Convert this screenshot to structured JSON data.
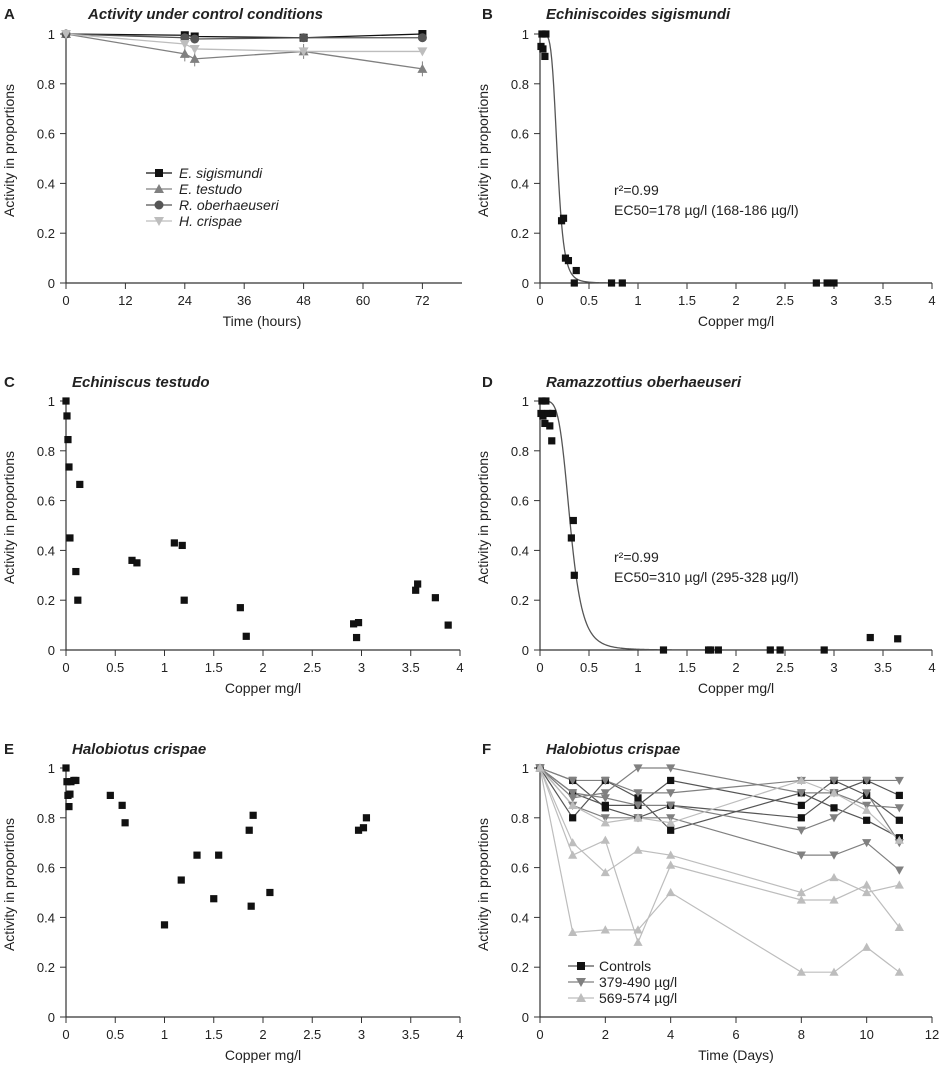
{
  "colors": {
    "black": "#111111",
    "dark": "#555555",
    "mid": "#808080",
    "light": "#bdbdbd",
    "axis": "#333333"
  },
  "chart_data": [
    {
      "id": "A",
      "letter": "A",
      "type": "line",
      "title": "Activity under control conditions",
      "xlabel": "Time (hours)",
      "ylabel": "Activity in proportions",
      "xlim": [
        0,
        80
      ],
      "ylim": [
        0,
        1
      ],
      "xticks": [
        0,
        12,
        24,
        36,
        48,
        60,
        72
      ],
      "yticks": [
        0,
        0.2,
        0.4,
        0.6,
        0.8,
        1
      ],
      "ytick_labels": [
        "0",
        "0.2",
        "0.4",
        "0.6",
        "0.8",
        "1"
      ],
      "legend": {
        "placement": "center-left"
      },
      "series": [
        {
          "name": "E. sigismundi",
          "marker": "square",
          "color": "black",
          "x": [
            0,
            24,
            26,
            48,
            72
          ],
          "y": [
            1,
            0.995,
            0.99,
            0.985,
            1
          ]
        },
        {
          "name": "E. testudo",
          "marker": "triangle-up",
          "color": "mid",
          "x": [
            0,
            24,
            26,
            48,
            72
          ],
          "y": [
            1,
            0.92,
            0.9,
            0.93,
            0.86
          ]
        },
        {
          "name": "R. oberhaeuseri",
          "marker": "circle",
          "color": "dark",
          "x": [
            0,
            24,
            26,
            48,
            72
          ],
          "y": [
            1,
            0.985,
            0.98,
            0.985,
            0.985
          ]
        },
        {
          "name": "H. crispae",
          "marker": "triangle-down",
          "color": "light",
          "x": [
            0,
            24,
            26,
            48,
            72
          ],
          "y": [
            1,
            0.96,
            0.94,
            0.93,
            0.93
          ]
        }
      ]
    },
    {
      "id": "B",
      "letter": "B",
      "type": "scatter",
      "title": "Echiniscoides sigismundi",
      "xlabel": "Copper mg/l",
      "ylabel": "Activity in proportions",
      "xlim": [
        0,
        4
      ],
      "ylim": [
        0,
        1
      ],
      "xticks": [
        0,
        0.5,
        1,
        1.5,
        2,
        2.5,
        3,
        3.5,
        4
      ],
      "xtick_labels": [
        "0",
        "0.5",
        "1",
        "1.5",
        "2",
        "2.5",
        "3",
        "3.5",
        "4"
      ],
      "yticks": [
        0,
        0.2,
        0.4,
        0.6,
        0.8,
        1
      ],
      "ytick_labels": [
        "0",
        "0.2",
        "0.4",
        "0.6",
        "0.8",
        "1"
      ],
      "fit": {
        "ec50": 0.178,
        "hill": 5.5
      },
      "annotation_r2": "r²=0.99",
      "annotation_ec50": "EC50=178 µg/l (168-186 µg/l)",
      "x": [
        0.01,
        0.02,
        0.03,
        0.05,
        0.06,
        0.22,
        0.24,
        0.26,
        0.29,
        0.35,
        0.37,
        0.73,
        0.84,
        2.82,
        2.93,
        3.0
      ],
      "y": [
        0.95,
        1,
        0.94,
        0.91,
        1,
        0.25,
        0.26,
        0.1,
        0.09,
        0.0,
        0.05,
        0.0,
        0.0,
        0.0,
        0.0,
        0.0
      ]
    },
    {
      "id": "C",
      "letter": "C",
      "type": "scatter",
      "title": "Echiniscus testudo",
      "xlabel": "Copper mg/l",
      "ylabel": "Activity in proportions",
      "xlim": [
        0,
        4
      ],
      "ylim": [
        0,
        1
      ],
      "xticks": [
        0,
        0.5,
        1,
        1.5,
        2,
        2.5,
        3,
        3.5,
        4
      ],
      "xtick_labels": [
        "0",
        "0.5",
        "1",
        "1.5",
        "2",
        "2.5",
        "3",
        "3.5",
        "4"
      ],
      "yticks": [
        0,
        0.2,
        0.4,
        0.6,
        0.8,
        1
      ],
      "ytick_labels": [
        "0",
        "0.2",
        "0.4",
        "0.6",
        "0.8",
        "1"
      ],
      "x": [
        0.0,
        0.01,
        0.02,
        0.03,
        0.04,
        0.1,
        0.12,
        0.14,
        0.67,
        0.72,
        1.1,
        1.18,
        1.2,
        1.77,
        1.83,
        2.92,
        2.97,
        2.95,
        3.55,
        3.57,
        3.75,
        3.88
      ],
      "y": [
        1.0,
        0.94,
        0.845,
        0.735,
        0.45,
        0.315,
        0.2,
        0.665,
        0.36,
        0.35,
        0.43,
        0.42,
        0.2,
        0.17,
        0.055,
        0.105,
        0.11,
        0.05,
        0.24,
        0.265,
        0.21,
        0.1
      ]
    },
    {
      "id": "D",
      "letter": "D",
      "type": "scatter",
      "title": "Ramazzottius oberhaeuseri",
      "xlabel": "Copper mg/l",
      "ylabel": "Activity in proportions",
      "xlim": [
        0,
        4
      ],
      "ylim": [
        0,
        1
      ],
      "xticks": [
        0,
        0.5,
        1,
        1.5,
        2,
        2.5,
        3,
        3.5,
        4
      ],
      "xtick_labels": [
        "0",
        "0.5",
        "1",
        "1.5",
        "2",
        "2.5",
        "3",
        "3.5",
        "4"
      ],
      "yticks": [
        0,
        0.2,
        0.4,
        0.6,
        0.8,
        1
      ],
      "ytick_labels": [
        "0",
        "0.2",
        "0.4",
        "0.6",
        "0.8",
        "1"
      ],
      "fit": {
        "ec50": 0.31,
        "hill": 5
      },
      "annotation_r2": "r²=0.99",
      "annotation_ec50": "EC50=310 µg/l (295-328 µg/l)",
      "x": [
        0.01,
        0.02,
        0.03,
        0.05,
        0.06,
        0.08,
        0.1,
        0.12,
        0.13,
        0.32,
        0.34,
        0.35,
        1.26,
        1.72,
        1.74,
        1.82,
        2.35,
        2.45,
        2.9,
        3.37,
        3.65
      ],
      "y": [
        0.95,
        1,
        0.94,
        0.91,
        1,
        0.95,
        0.9,
        0.84,
        0.95,
        0.45,
        0.52,
        0.3,
        0.0,
        0.0,
        0.0,
        0.0,
        0.0,
        0.0,
        0.0,
        0.05,
        0.045
      ]
    },
    {
      "id": "E",
      "letter": "E",
      "type": "scatter",
      "title": "Halobiotus crispae",
      "xlabel": "Copper mg/l",
      "ylabel": "Activity in proportions",
      "xlim": [
        0,
        4
      ],
      "ylim": [
        0,
        1
      ],
      "xticks": [
        0,
        0.5,
        1,
        1.5,
        2,
        2.5,
        3,
        3.5,
        4
      ],
      "xtick_labels": [
        "0",
        "0.5",
        "1",
        "1.5",
        "2",
        "2.5",
        "3",
        "3.5",
        "4"
      ],
      "yticks": [
        0,
        0.2,
        0.4,
        0.6,
        0.8,
        1
      ],
      "ytick_labels": [
        "0",
        "0.2",
        "0.4",
        "0.6",
        "0.8",
        "1"
      ],
      "x": [
        0.0,
        0.01,
        0.02,
        0.03,
        0.04,
        0.05,
        0.08,
        0.1,
        0.45,
        0.57,
        0.6,
        1.0,
        1.17,
        1.33,
        1.5,
        1.55,
        1.86,
        1.88,
        1.9,
        2.07,
        2.97,
        3.02,
        3.05
      ],
      "y": [
        1.0,
        0.945,
        0.89,
        0.845,
        0.895,
        0.945,
        0.95,
        0.95,
        0.89,
        0.85,
        0.78,
        0.37,
        0.55,
        0.65,
        0.475,
        0.65,
        0.75,
        0.445,
        0.81,
        0.5,
        0.75,
        0.76,
        0.8
      ]
    },
    {
      "id": "F",
      "letter": "F",
      "type": "line",
      "title": "Halobiotus crispae",
      "xlabel": "Time (Days)",
      "ylabel": "Activity in proportions",
      "xlim": [
        0,
        12
      ],
      "ylim": [
        0,
        1
      ],
      "xticks": [
        0,
        2,
        4,
        6,
        8,
        10,
        12
      ],
      "yticks": [
        0,
        0.2,
        0.4,
        0.6,
        0.8,
        1
      ],
      "ytick_labels": [
        "0",
        "0.2",
        "0.4",
        "0.6",
        "0.8",
        "1"
      ],
      "x": [
        0,
        1,
        2,
        3,
        4,
        8,
        9,
        10,
        11
      ],
      "legend": {
        "placement": "bottom-left"
      },
      "legend_entries": [
        {
          "name": "Controls",
          "marker": "square",
          "color": "dark"
        },
        {
          "name": "379-490 µg/l",
          "marker": "triangle-down",
          "color": "mid"
        },
        {
          "name": "569-574 µg/l",
          "marker": "triangle-up",
          "color": "light"
        }
      ],
      "series": [
        {
          "group": "Controls",
          "y": [
            1,
            0.8,
            0.95,
            0.88,
            0.75,
            0.9,
            0.84,
            0.79,
            0.72
          ]
        },
        {
          "group": "Controls",
          "y": [
            1,
            0.9,
            0.85,
            0.85,
            0.95,
            0.85,
            0.95,
            0.89,
            0.79
          ]
        },
        {
          "group": "Controls",
          "y": [
            1,
            0.95,
            0.84,
            0.8,
            0.85,
            0.8,
            0.9,
            0.95,
            0.89
          ]
        },
        {
          "group": "379-490 µg/l",
          "y": [
            1,
            0.95,
            0.95,
            0.9,
            0.9,
            0.95,
            0.95,
            0.95,
            0.95
          ]
        },
        {
          "group": "379-490 µg/l",
          "y": [
            1,
            0.9,
            0.88,
            0.85,
            0.85,
            0.75,
            0.8,
            0.9,
            0.7
          ]
        },
        {
          "group": "379-490 µg/l",
          "y": [
            1,
            0.85,
            0.8,
            0.8,
            0.8,
            0.65,
            0.65,
            0.7,
            0.59
          ]
        },
        {
          "group": "379-490 µg/l",
          "y": [
            1,
            0.88,
            0.9,
            1.0,
            1.0,
            0.9,
            0.9,
            0.85,
            0.84
          ]
        },
        {
          "group": "569-574 µg/l",
          "y": [
            1,
            0.7,
            0.58,
            0.67,
            0.65,
            0.5,
            0.56,
            0.5,
            0.53
          ]
        },
        {
          "group": "569-574 µg/l",
          "y": [
            1,
            0.65,
            0.71,
            0.3,
            0.61,
            0.47,
            0.47,
            0.53,
            0.36
          ]
        },
        {
          "group": "569-574 µg/l",
          "y": [
            1,
            0.34,
            0.35,
            0.35,
            0.5,
            0.18,
            0.18,
            0.28,
            0.18
          ]
        },
        {
          "group": "569-574 µg/l",
          "y": [
            1,
            0.85,
            0.78,
            0.8,
            0.78,
            0.95,
            0.9,
            0.83,
            0.71
          ]
        }
      ]
    }
  ]
}
